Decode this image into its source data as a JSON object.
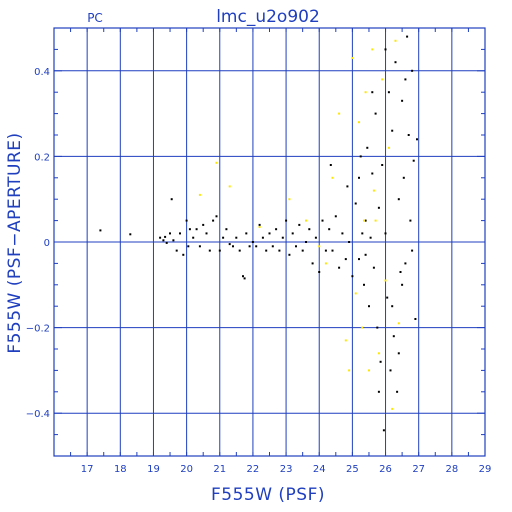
{
  "chart_data": {
    "type": "scatter",
    "title": "lmc_u2o902",
    "panel_label": "PC",
    "xlabel": "F555W (PSF)",
    "ylabel": "F555W (PSF−APERTURE)",
    "xlim": [
      16,
      29
    ],
    "ylim": [
      -0.5,
      0.5
    ],
    "x_ticks": [
      17,
      18,
      19,
      20,
      21,
      22,
      23,
      24,
      25,
      26,
      27,
      28,
      29
    ],
    "y_ticks": [
      -0.4,
      -0.2,
      0,
      0.2,
      0.4
    ],
    "grid": true,
    "colors": {
      "axis": "#1f3fbf",
      "grid": "#1f3fbf",
      "series_black": "#000000",
      "series_yellow": "#ffe600"
    },
    "series": [
      {
        "color": "#000000",
        "points": [
          [
            17.4,
            0.027
          ],
          [
            18.3,
            0.018
          ],
          [
            19.2,
            0.01
          ],
          [
            19.3,
            0.004
          ],
          [
            19.35,
            0.012
          ],
          [
            19.4,
            -0.002
          ],
          [
            19.5,
            0.02
          ],
          [
            19.55,
            0.1
          ],
          [
            19.6,
            0.004
          ],
          [
            19.7,
            -0.02
          ],
          [
            19.8,
            0.02
          ],
          [
            19.9,
            -0.03
          ],
          [
            20.0,
            0.05
          ],
          [
            20.05,
            -0.01
          ],
          [
            20.1,
            0.03
          ],
          [
            20.2,
            0.01
          ],
          [
            20.3,
            0.03
          ],
          [
            20.4,
            -0.01
          ],
          [
            20.5,
            0.04
          ],
          [
            20.6,
            0.02
          ],
          [
            20.7,
            -0.02
          ],
          [
            20.8,
            0.05
          ],
          [
            20.9,
            0.06
          ],
          [
            21.0,
            -0.02
          ],
          [
            21.1,
            0.01
          ],
          [
            21.2,
            0.03
          ],
          [
            21.3,
            -0.005
          ],
          [
            21.4,
            -0.01
          ],
          [
            21.5,
            0.01
          ],
          [
            21.6,
            -0.02
          ],
          [
            21.7,
            -0.08
          ],
          [
            21.75,
            -0.085
          ],
          [
            21.8,
            0.02
          ],
          [
            21.9,
            -0.01
          ],
          [
            22.0,
            0.0
          ],
          [
            22.1,
            -0.01
          ],
          [
            22.2,
            0.04
          ],
          [
            22.3,
            0.01
          ],
          [
            22.4,
            -0.02
          ],
          [
            22.5,
            0.02
          ],
          [
            22.6,
            -0.01
          ],
          [
            22.7,
            0.03
          ],
          [
            22.8,
            -0.02
          ],
          [
            22.9,
            0.01
          ],
          [
            23.0,
            0.05
          ],
          [
            23.1,
            -0.03
          ],
          [
            23.2,
            0.02
          ],
          [
            23.3,
            -0.01
          ],
          [
            23.4,
            0.04
          ],
          [
            23.5,
            -0.02
          ],
          [
            23.6,
            0.0
          ],
          [
            23.7,
            0.03
          ],
          [
            23.8,
            -0.05
          ],
          [
            23.9,
            0.01
          ],
          [
            24.0,
            -0.07
          ],
          [
            24.1,
            0.05
          ],
          [
            24.2,
            -0.02
          ],
          [
            24.3,
            0.03
          ],
          [
            24.35,
            0.18
          ],
          [
            24.4,
            -0.02
          ],
          [
            24.5,
            0.06
          ],
          [
            24.6,
            -0.06
          ],
          [
            24.7,
            0.02
          ],
          [
            24.8,
            -0.04
          ],
          [
            24.85,
            0.13
          ],
          [
            24.9,
            0.0
          ],
          [
            25.0,
            -0.08
          ],
          [
            25.1,
            0.09
          ],
          [
            25.2,
            -0.04
          ],
          [
            25.25,
            0.2
          ],
          [
            25.3,
            0.02
          ],
          [
            25.35,
            -0.1
          ],
          [
            25.4,
            0.05
          ],
          [
            25.45,
            0.22
          ],
          [
            25.5,
            -0.15
          ],
          [
            25.55,
            0.01
          ],
          [
            25.6,
            0.16
          ],
          [
            25.65,
            -0.06
          ],
          [
            25.7,
            0.3
          ],
          [
            25.75,
            -0.2
          ],
          [
            25.8,
            0.08
          ],
          [
            25.85,
            -0.28
          ],
          [
            25.9,
            0.18
          ],
          [
            25.95,
            -0.44
          ],
          [
            26.0,
            0.02
          ],
          [
            26.05,
            -0.13
          ],
          [
            26.1,
            0.35
          ],
          [
            26.15,
            -0.3
          ],
          [
            26.2,
            0.26
          ],
          [
            26.25,
            -0.22
          ],
          [
            26.3,
            0.42
          ],
          [
            26.35,
            -0.35
          ],
          [
            26.4,
            0.1
          ],
          [
            26.45,
            -0.07
          ],
          [
            26.5,
            0.33
          ],
          [
            26.55,
            0.15
          ],
          [
            26.6,
            -0.05
          ],
          [
            26.65,
            0.48
          ],
          [
            26.7,
            0.25
          ],
          [
            26.75,
            0.05
          ],
          [
            26.8,
            0.4
          ],
          [
            26.85,
            0.19
          ],
          [
            26.9,
            -0.18
          ],
          [
            26.95,
            0.24
          ],
          [
            25.2,
            0.15
          ],
          [
            25.6,
            0.35
          ],
          [
            26.0,
            0.45
          ],
          [
            26.4,
            -0.26
          ],
          [
            26.6,
            0.38
          ],
          [
            26.8,
            -0.02
          ],
          [
            25.8,
            -0.35
          ],
          [
            26.2,
            -0.15
          ],
          [
            26.5,
            -0.1
          ],
          [
            25.4,
            -0.03
          ]
        ]
      },
      {
        "color": "#ffe600",
        "points": [
          [
            20.4,
            0.11
          ],
          [
            20.9,
            0.185
          ],
          [
            21.3,
            0.13
          ],
          [
            22.2,
            0.035
          ],
          [
            23.1,
            0.1
          ],
          [
            23.6,
            0.05
          ],
          [
            24.0,
            -0.01
          ],
          [
            24.2,
            -0.05
          ],
          [
            24.4,
            0.15
          ],
          [
            24.6,
            0.3
          ],
          [
            24.8,
            -0.23
          ],
          [
            24.9,
            -0.3
          ],
          [
            25.0,
            0.43
          ],
          [
            25.1,
            -0.12
          ],
          [
            25.2,
            0.28
          ],
          [
            25.3,
            -0.2
          ],
          [
            25.4,
            0.35
          ],
          [
            25.5,
            -0.3
          ],
          [
            25.6,
            0.45
          ],
          [
            25.7,
            0.05
          ],
          [
            25.8,
            -0.26
          ],
          [
            25.9,
            0.38
          ],
          [
            26.0,
            -0.09
          ],
          [
            26.1,
            0.22
          ],
          [
            26.2,
            -0.39
          ],
          [
            26.3,
            0.47
          ],
          [
            26.4,
            -0.19
          ],
          [
            25.65,
            0.12
          ],
          [
            25.35,
            0.05
          ]
        ]
      }
    ]
  }
}
